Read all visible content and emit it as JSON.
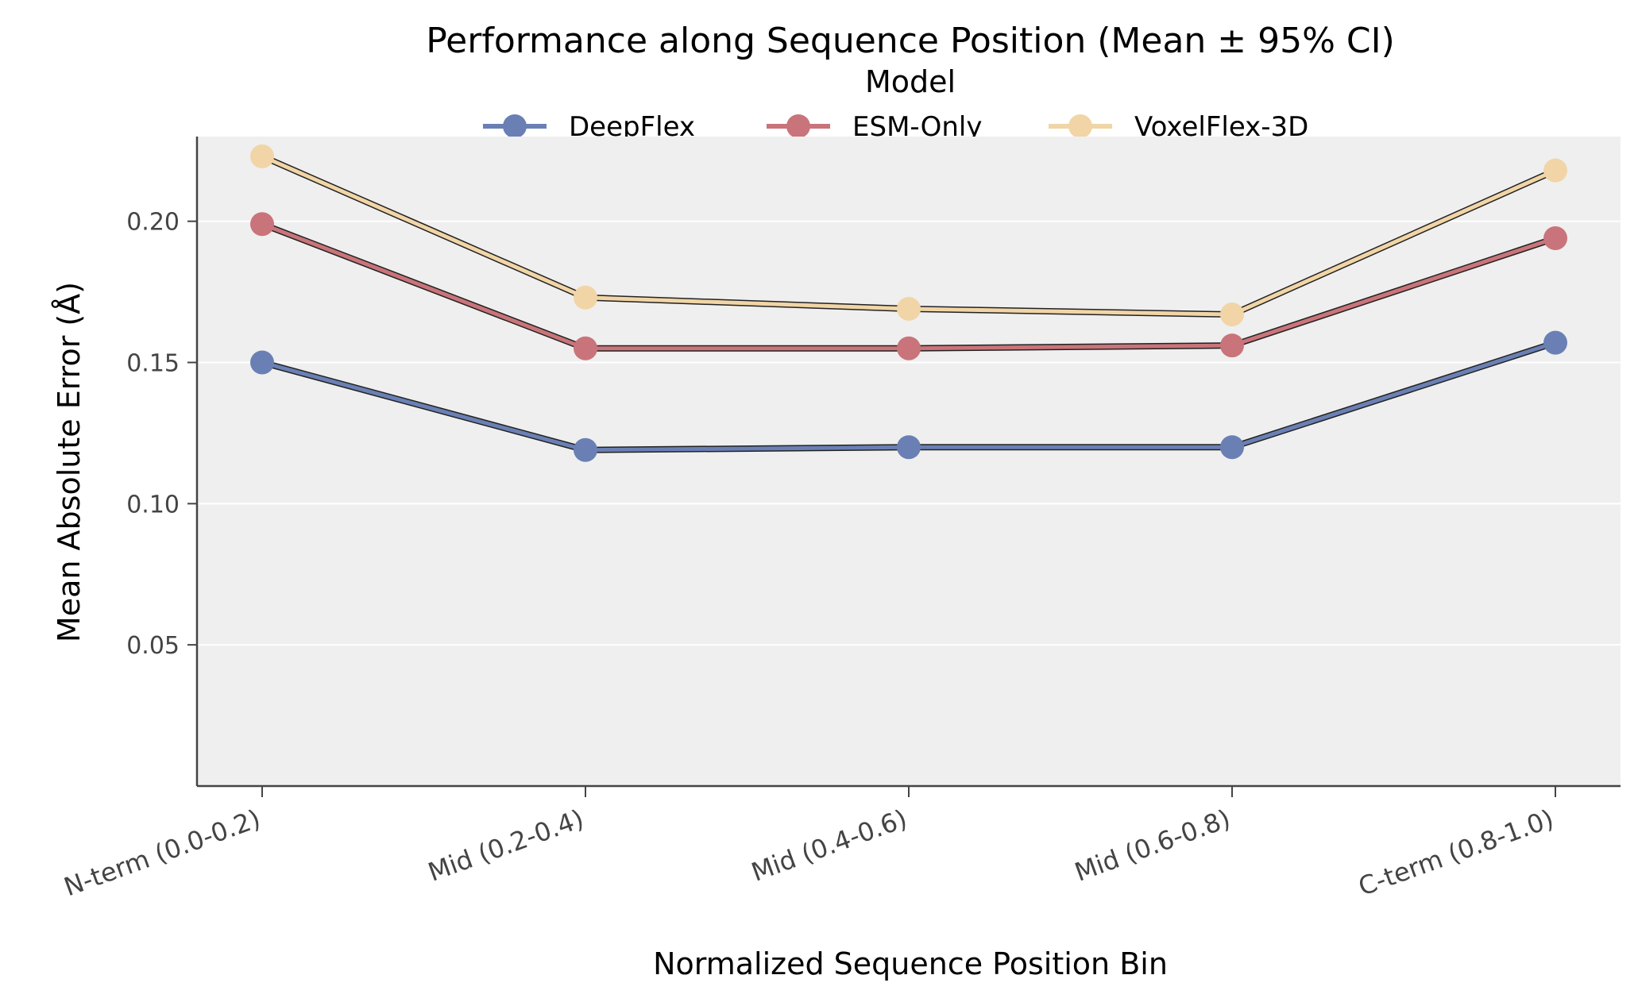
{
  "chart_data": {
    "type": "line",
    "title": "Performance along Sequence Position (Mean ± 95% CI)",
    "xlabel": "Normalized Sequence Position Bin",
    "ylabel": "Mean Absolute Error (Å)",
    "categories": [
      "N-term (0.0-0.2)",
      "Mid (0.2-0.4)",
      "Mid (0.4-0.6)",
      "Mid (0.6-0.8)",
      "C-term (0.8-1.0)"
    ],
    "ylim": [
      0.0,
      0.23
    ],
    "yticks": [
      0.05,
      0.1,
      0.15,
      0.2
    ],
    "ytick_labels": [
      "0.05",
      "0.10",
      "0.15",
      "0.20"
    ],
    "grid": "horizontal",
    "legend": {
      "title": "Model",
      "placement": "top-center"
    },
    "series": [
      {
        "name": "DeepFlex",
        "color": "#6a80b4",
        "values": [
          0.15,
          0.119,
          0.12,
          0.12,
          0.157
        ]
      },
      {
        "name": "ESM-Only",
        "color": "#c9747a",
        "values": [
          0.199,
          0.155,
          0.155,
          0.156,
          0.194
        ]
      },
      {
        "name": "VoxelFlex-3D",
        "color": "#f1d5a6",
        "values": [
          0.223,
          0.173,
          0.169,
          0.167,
          0.218
        ]
      }
    ]
  }
}
